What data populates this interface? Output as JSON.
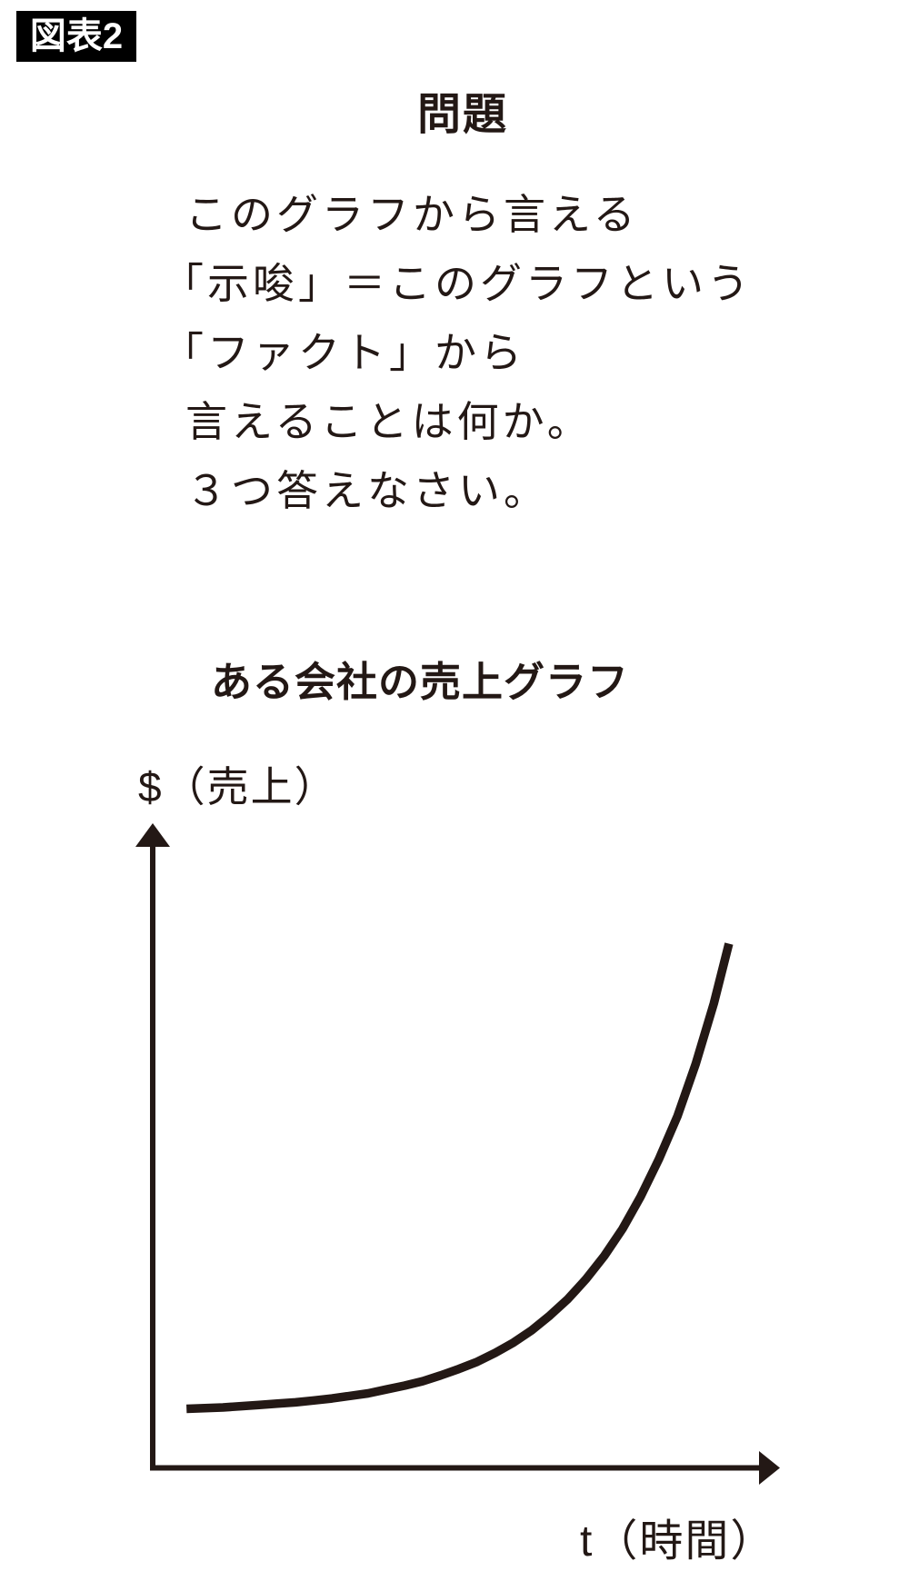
{
  "figure_label": "図表2",
  "problem": {
    "title": "問題",
    "lines": [
      "このグラフから言える",
      "「示唆」＝このグラフという",
      "「ファクト」から",
      "言えることは何か。",
      "３つ答えなさい。"
    ]
  },
  "chart": {
    "title": "ある会社の売上グラフ",
    "y_axis_label": "$（売上）",
    "x_axis_label": "t（時間）",
    "ink_color": "#231815",
    "label_box_bg": "#000000",
    "label_box_text_color": "#ffffff"
  },
  "chart_data": {
    "type": "line",
    "title": "ある会社の売上グラフ",
    "xlabel": "t（時間）",
    "ylabel": "$（売上）",
    "xlim_norm": [
      0,
      1
    ],
    "ylim_norm": [
      0,
      1
    ],
    "ticks": "none",
    "grid": false,
    "legend": "none",
    "axes_style": "arrow-ended",
    "series": [
      {
        "name": "売上",
        "shape": "exponential-growth",
        "points_norm": [
          [
            0.054,
            0.092
          ],
          [
            0.083,
            0.093
          ],
          [
            0.112,
            0.094
          ],
          [
            0.141,
            0.096
          ],
          [
            0.17,
            0.098
          ],
          [
            0.199,
            0.1
          ],
          [
            0.228,
            0.102
          ],
          [
            0.257,
            0.105
          ],
          [
            0.286,
            0.108
          ],
          [
            0.315,
            0.112
          ],
          [
            0.344,
            0.116
          ],
          [
            0.373,
            0.122
          ],
          [
            0.402,
            0.128
          ],
          [
            0.431,
            0.135
          ],
          [
            0.46,
            0.144
          ],
          [
            0.489,
            0.154
          ],
          [
            0.518,
            0.165
          ],
          [
            0.547,
            0.179
          ],
          [
            0.576,
            0.195
          ],
          [
            0.605,
            0.214
          ],
          [
            0.634,
            0.237
          ],
          [
            0.663,
            0.263
          ],
          [
            0.692,
            0.294
          ],
          [
            0.721,
            0.33
          ],
          [
            0.75,
            0.372
          ],
          [
            0.779,
            0.422
          ],
          [
            0.808,
            0.48
          ],
          [
            0.838,
            0.548
          ],
          [
            0.867,
            0.629
          ],
          [
            0.896,
            0.723
          ],
          [
            0.92,
            0.816
          ]
        ]
      }
    ]
  }
}
